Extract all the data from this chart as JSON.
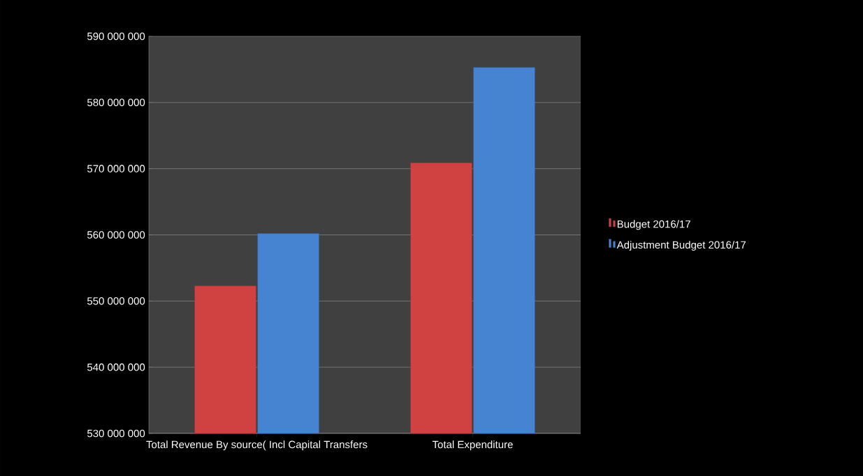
{
  "chart_data": {
    "type": "bar",
    "categories": [
      "Total Revenue By source( Incl Capital Transfers",
      "Total Expenditure"
    ],
    "series": [
      {
        "name": "Budget 2016/17",
        "color": "#d04242",
        "values": [
          552300000,
          570900000
        ]
      },
      {
        "name": "Adjustment Budget 2016/17",
        "color": "#4683d0",
        "values": [
          560200000,
          585300000
        ]
      }
    ],
    "ylim": [
      530000000,
      590000000
    ],
    "yticks": [
      {
        "value": 530000000,
        "label": "530 000 000"
      },
      {
        "value": 540000000,
        "label": "540 000 000"
      },
      {
        "value": 550000000,
        "label": "550 000 000"
      },
      {
        "value": 560000000,
        "label": "560 000 000"
      },
      {
        "value": 570000000,
        "label": "570 000 000"
      },
      {
        "value": 580000000,
        "label": "580 000 000"
      },
      {
        "value": 590000000,
        "label": "590 000 000"
      }
    ],
    "grid": "y",
    "legend": "right"
  }
}
